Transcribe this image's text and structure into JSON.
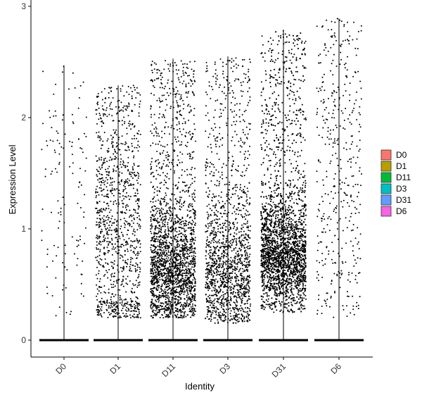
{
  "chart_data": {
    "type": "scatter",
    "subtype": "violin-jitter",
    "title": "",
    "xlabel": "Identity",
    "ylabel": "Expression Level",
    "ylim": [
      -0.15,
      3.03
    ],
    "yticks": [
      0,
      1,
      2,
      3
    ],
    "grid": false,
    "legend_position": "right",
    "categories": [
      "D0",
      "D1",
      "D11",
      "D3",
      "D31",
      "D6"
    ],
    "series": [
      {
        "name": "D0",
        "color": "#F8766D",
        "max_value": 2.47,
        "expressing_range": [
          0.2,
          2.47
        ],
        "jitter_points": 130
      },
      {
        "name": "D1",
        "color": "#B79F00",
        "max_value": 2.29,
        "expressing_range": [
          0.2,
          2.29
        ],
        "jitter_points": 1100
      },
      {
        "name": "D11",
        "color": "#00BA38",
        "max_value": 2.53,
        "expressing_range": [
          0.2,
          2.53
        ],
        "jitter_points": 2200
      },
      {
        "name": "D3",
        "color": "#00BFC4",
        "max_value": 2.55,
        "expressing_range": [
          0.15,
          2.55
        ],
        "jitter_points": 1500
      },
      {
        "name": "D31",
        "color": "#619CFF",
        "max_value": 2.79,
        "expressing_range": [
          0.25,
          2.79
        ],
        "jitter_points": 3400
      },
      {
        "name": "D6",
        "color": "#F564E3",
        "max_value": 2.89,
        "expressing_range": [
          0.2,
          2.89
        ],
        "jitter_points": 420
      }
    ]
  }
}
